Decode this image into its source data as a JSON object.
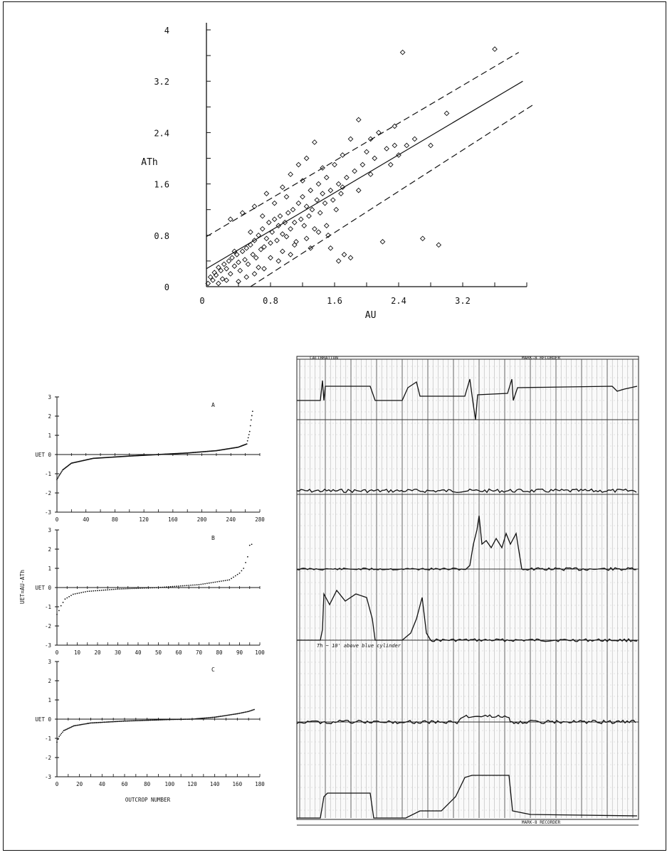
{
  "figure": {
    "scatter": {
      "chart_data": {
        "type": "scatter",
        "xlabel": "AU",
        "ylabel": "ATh",
        "xlim": [
          0,
          4.0
        ],
        "ylim": [
          0,
          4.0
        ],
        "xticks": [
          "0",
          "0.8",
          "1.6",
          "2.4",
          "3.2"
        ],
        "yticks": [
          "0",
          "0.8",
          "1.6",
          "2.4",
          "3.2",
          "4"
        ],
        "lines": [
          {
            "style": "solid",
            "points": [
              [
                0,
                0.28
              ],
              [
                3.95,
                3.2
              ]
            ]
          },
          {
            "style": "dashed",
            "points": [
              [
                0,
                0.78
              ],
              [
                3.9,
                3.65
              ]
            ]
          },
          {
            "style": "dashed",
            "points": [
              [
                0.55,
                0
              ],
              [
                4.1,
                2.85
              ]
            ]
          }
        ],
        "points": [
          [
            0.02,
            0.05
          ],
          [
            0.05,
            0.15
          ],
          [
            0.08,
            0.1
          ],
          [
            0.1,
            0.22
          ],
          [
            0.12,
            0.18
          ],
          [
            0.15,
            0.3
          ],
          [
            0.18,
            0.25
          ],
          [
            0.2,
            0.12
          ],
          [
            0.22,
            0.35
          ],
          [
            0.25,
            0.28
          ],
          [
            0.28,
            0.4
          ],
          [
            0.3,
            0.2
          ],
          [
            0.32,
            0.45
          ],
          [
            0.35,
            0.32
          ],
          [
            0.38,
            0.5
          ],
          [
            0.4,
            0.38
          ],
          [
            0.42,
            0.25
          ],
          [
            0.45,
            0.55
          ],
          [
            0.48,
            0.42
          ],
          [
            0.5,
            0.6
          ],
          [
            0.52,
            0.35
          ],
          [
            0.55,
            0.65
          ],
          [
            0.58,
            0.5
          ],
          [
            0.6,
            0.72
          ],
          [
            0.62,
            0.45
          ],
          [
            0.65,
            0.8
          ],
          [
            0.68,
            0.58
          ],
          [
            0.7,
            0.9
          ],
          [
            0.72,
            0.62
          ],
          [
            0.75,
            0.75
          ],
          [
            0.78,
            1.0
          ],
          [
            0.8,
            0.68
          ],
          [
            0.82,
            0.85
          ],
          [
            0.85,
            1.05
          ],
          [
            0.88,
            0.72
          ],
          [
            0.9,
            0.95
          ],
          [
            0.92,
            1.1
          ],
          [
            0.95,
            0.82
          ],
          [
            0.98,
            1.0
          ],
          [
            1.0,
            0.78
          ],
          [
            1.02,
            1.15
          ],
          [
            1.05,
            0.9
          ],
          [
            1.08,
            1.2
          ],
          [
            1.1,
            1.0
          ],
          [
            1.12,
            0.7
          ],
          [
            1.15,
            1.3
          ],
          [
            1.18,
            1.05
          ],
          [
            1.2,
            1.4
          ],
          [
            1.22,
            0.95
          ],
          [
            1.25,
            1.25
          ],
          [
            1.28,
            1.1
          ],
          [
            1.3,
            1.5
          ],
          [
            1.32,
            1.2
          ],
          [
            1.35,
            0.9
          ],
          [
            1.38,
            1.35
          ],
          [
            1.4,
            1.6
          ],
          [
            1.42,
            1.15
          ],
          [
            1.45,
            1.45
          ],
          [
            1.48,
            1.3
          ],
          [
            1.5,
            1.7
          ],
          [
            1.52,
            0.8
          ],
          [
            1.55,
            1.5
          ],
          [
            1.58,
            1.35
          ],
          [
            1.6,
            1.9
          ],
          [
            1.62,
            1.2
          ],
          [
            1.65,
            1.6
          ],
          [
            1.68,
            1.45
          ],
          [
            1.7,
            2.05
          ],
          [
            1.72,
            0.5
          ],
          [
            1.75,
            1.7
          ],
          [
            1.8,
            2.3
          ],
          [
            1.85,
            1.8
          ],
          [
            1.9,
            2.6
          ],
          [
            1.95,
            1.9
          ],
          [
            2.0,
            2.1
          ],
          [
            2.05,
            1.75
          ],
          [
            2.1,
            2.0
          ],
          [
            2.15,
            2.4
          ],
          [
            2.2,
            0.7
          ],
          [
            2.25,
            2.15
          ],
          [
            2.3,
            1.9
          ],
          [
            2.35,
            2.5
          ],
          [
            2.4,
            2.05
          ],
          [
            2.5,
            2.2
          ],
          [
            2.6,
            2.3
          ],
          [
            2.7,
            0.75
          ],
          [
            2.8,
            2.2
          ],
          [
            2.9,
            0.65
          ],
          [
            3.0,
            2.7
          ],
          [
            2.45,
            3.65
          ],
          [
            3.6,
            3.7
          ],
          [
            0.3,
            1.05
          ],
          [
            0.45,
            1.15
          ],
          [
            0.6,
            1.25
          ],
          [
            0.75,
            1.45
          ],
          [
            0.95,
            1.55
          ],
          [
            1.05,
            1.75
          ],
          [
            1.15,
            1.9
          ],
          [
            1.25,
            2.0
          ],
          [
            1.35,
            2.25
          ],
          [
            0.5,
            0.15
          ],
          [
            0.65,
            0.3
          ],
          [
            0.8,
            0.45
          ],
          [
            0.95,
            0.55
          ],
          [
            1.1,
            0.65
          ],
          [
            1.25,
            0.75
          ],
          [
            1.4,
            0.85
          ],
          [
            1.55,
            0.6
          ],
          [
            1.65,
            0.4
          ],
          [
            1.8,
            0.45
          ],
          [
            0.35,
            0.55
          ],
          [
            0.55,
            0.85
          ],
          [
            0.7,
            1.1
          ],
          [
            0.85,
            1.3
          ],
          [
            1.0,
            1.4
          ],
          [
            1.2,
            1.65
          ],
          [
            1.45,
            1.85
          ],
          [
            1.7,
            1.55
          ],
          [
            1.9,
            1.5
          ],
          [
            2.05,
            2.3
          ],
          [
            0.15,
            0.05
          ],
          [
            0.25,
            0.1
          ],
          [
            0.4,
            0.08
          ],
          [
            0.6,
            0.2
          ],
          [
            0.72,
            0.28
          ],
          [
            0.9,
            0.4
          ],
          [
            1.05,
            0.5
          ],
          [
            1.3,
            0.6
          ],
          [
            1.5,
            0.95
          ],
          [
            2.35,
            2.2
          ]
        ]
      }
    },
    "residual_panels": {
      "ylabel": "UET=AU-ATh",
      "xlabel": "OUTCROP NUMBER",
      "zero_label": "UET",
      "panels": [
        {
          "chart_data": {
            "type": "scatter",
            "label": "A",
            "xlim": [
              0,
              280
            ],
            "ylim": [
              -3,
              3
            ],
            "xticks": [
              "0",
              "40",
              "80",
              "120",
              "160",
              "200",
              "240",
              "280"
            ],
            "yticks": [
              "3",
              "2",
              "1",
              "0",
              "-1",
              "-2",
              "-3"
            ],
            "n": 270,
            "sorted_curve": [
              [
                0,
                -1.3
              ],
              [
                3,
                -1.1
              ],
              [
                8,
                -0.8
              ],
              [
                20,
                -0.45
              ],
              [
                50,
                -0.2
              ],
              [
                100,
                -0.08
              ],
              [
                140,
                0.0
              ],
              [
                180,
                0.08
              ],
              [
                220,
                0.2
              ],
              [
                250,
                0.38
              ],
              [
                262,
                0.55
              ],
              [
                266,
                1.2
              ],
              [
                268,
                1.8
              ],
              [
                270,
                2.25
              ]
            ]
          }
        },
        {
          "chart_data": {
            "type": "scatter",
            "label": "B",
            "xlim": [
              0,
              100
            ],
            "ylim": [
              -3,
              3
            ],
            "xticks": [
              "0",
              "10",
              "20",
              "30",
              "40",
              "50",
              "60",
              "70",
              "80",
              "90",
              "100"
            ],
            "yticks": [
              "3",
              "2",
              "1",
              "0",
              "-1",
              "-2",
              "-3"
            ],
            "n": 96,
            "sorted_curve": [
              [
                0,
                -1.4
              ],
              [
                1,
                -1.2
              ],
              [
                2,
                -0.95
              ],
              [
                4,
                -0.6
              ],
              [
                8,
                -0.35
              ],
              [
                15,
                -0.2
              ],
              [
                30,
                -0.08
              ],
              [
                50,
                0.0
              ],
              [
                70,
                0.15
              ],
              [
                85,
                0.4
              ],
              [
                90,
                0.75
              ],
              [
                92,
                1.0
              ],
              [
                94,
                1.6
              ],
              [
                95,
                2.2
              ],
              [
                96,
                2.25
              ]
            ]
          }
        },
        {
          "chart_data": {
            "type": "scatter",
            "label": "C",
            "xlim": [
              0,
              180
            ],
            "ylim": [
              -3,
              3
            ],
            "xticks": [
              "0",
              "20",
              "40",
              "60",
              "80",
              "100",
              "120",
              "140",
              "160",
              "180"
            ],
            "yticks": [
              "3",
              "2",
              "1",
              "0",
              "-1",
              "-2",
              "-3"
            ],
            "n": 175,
            "sorted_curve": [
              [
                0,
                -1.2
              ],
              [
                2,
                -0.9
              ],
              [
                6,
                -0.6
              ],
              [
                15,
                -0.35
              ],
              [
                30,
                -0.2
              ],
              [
                60,
                -0.1
              ],
              [
                100,
                -0.02
              ],
              [
                120,
                0.0
              ],
              [
                140,
                0.1
              ],
              [
                160,
                0.28
              ],
              [
                170,
                0.4
              ],
              [
                175,
                0.5
              ]
            ]
          }
        }
      ]
    },
    "recorder_chart": {
      "header_left": "CALIBRATION",
      "header_right": "MARK-8 RECORDER",
      "footer_right": "MARK-8 RECORDER",
      "annotation": "Th ~ 10' above blue cylinder"
    }
  }
}
